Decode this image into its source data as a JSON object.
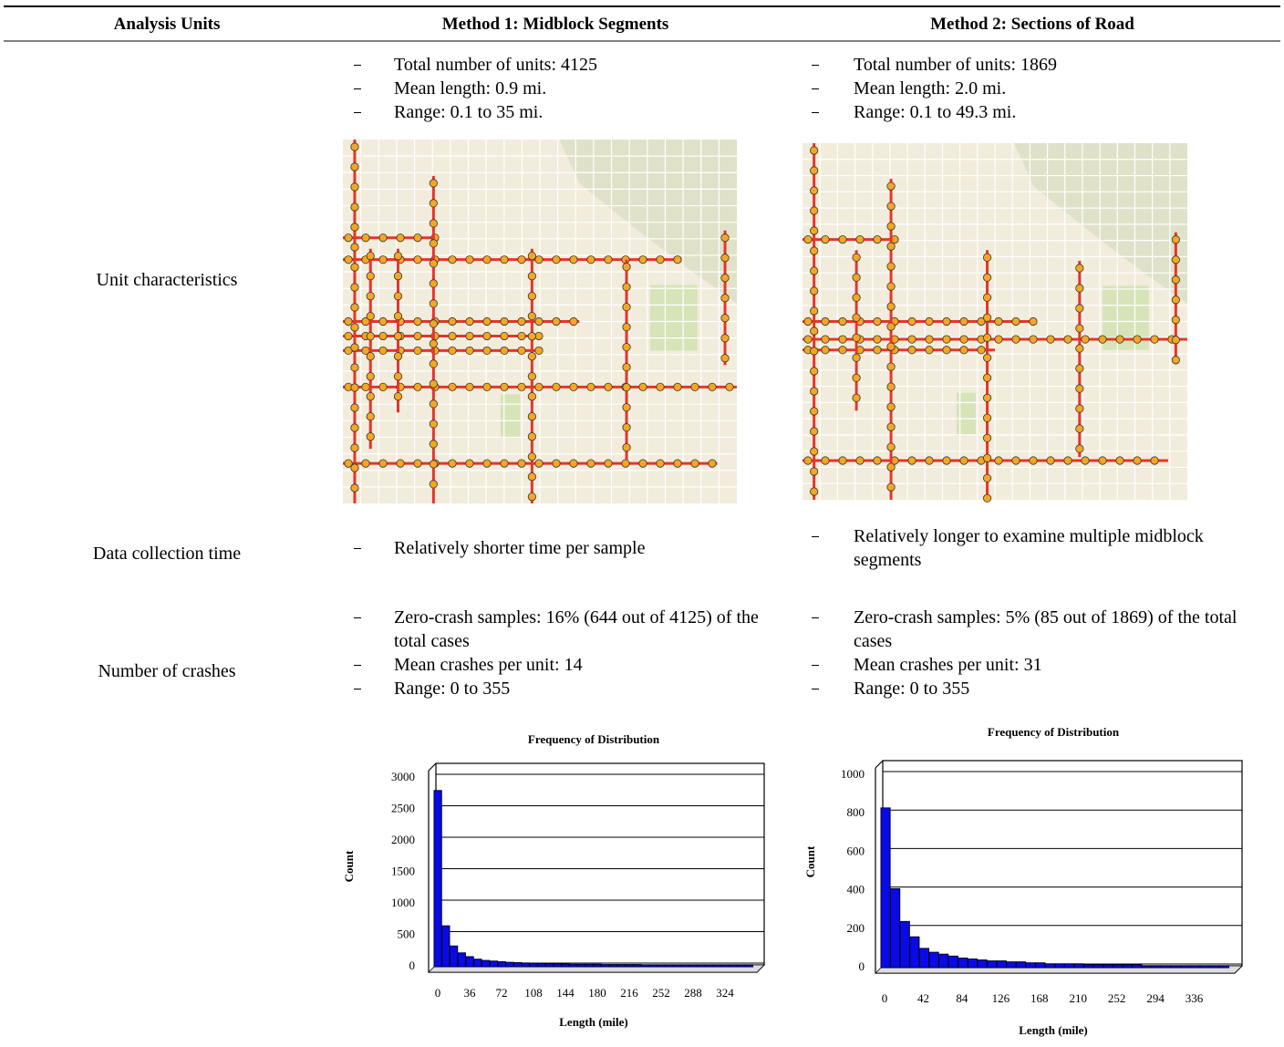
{
  "table": {
    "headers": [
      "Analysis Units",
      "Method 1: Midblock Segments",
      "Method 2: Sections of Road"
    ],
    "rows": [
      {
        "label": "Unit characteristics",
        "method1": [
          "Total number of units: 4125",
          "Mean length: 0.9 mi.",
          "Range: 0.1 to 35 mi."
        ],
        "method2": [
          "Total number of units: 1869",
          "Mean length: 2.0 mi.",
          "Range: 0.1 to 49.3 mi."
        ]
      },
      {
        "label": "Data collection time",
        "method1": [
          "Relatively shorter time per sample"
        ],
        "method2": [
          "Relatively longer to examine multiple midblock segments"
        ]
      },
      {
        "label": "Number of crashes",
        "method1": [
          "Zero-crash samples: 16% (644 out of 4125) of the total cases",
          "Mean crashes per unit: 14",
          "Range: 0 to 355"
        ],
        "method2": [
          "Zero-crash samples: 5% (85 out of 1869) of the total cases",
          "Mean crashes per unit: 31",
          "Range: 0 to 355"
        ]
      }
    ]
  },
  "charts": [
    {
      "type": "histogram",
      "title": "Frequency of Distribution",
      "xlabel": "Length (mile)",
      "ylabel": "Count",
      "color": "#0a0ae6",
      "bins": [
        0,
        9,
        18,
        27,
        36,
        45,
        54,
        63,
        72,
        81,
        90,
        99,
        108,
        117,
        126,
        135,
        144,
        153,
        162,
        171,
        180,
        189,
        198,
        207,
        216,
        225,
        234,
        243,
        252,
        261,
        270,
        279,
        288,
        297,
        306,
        315,
        324,
        333,
        342,
        351,
        360
      ],
      "counts": [
        2800,
        650,
        330,
        220,
        160,
        120,
        100,
        90,
        80,
        70,
        65,
        60,
        55,
        50,
        50,
        45,
        45,
        40,
        40,
        40,
        40,
        35,
        35,
        35,
        35,
        35,
        30,
        30,
        30,
        30,
        30,
        30,
        30,
        30,
        30,
        30,
        30,
        30,
        30,
        30
      ],
      "xlim": [
        0,
        360
      ],
      "ylim": [
        0,
        3000
      ],
      "xticks": [
        0,
        36,
        72,
        108,
        144,
        180,
        216,
        252,
        288,
        324
      ],
      "yticks": [
        0,
        500,
        1000,
        1500,
        2000,
        2500,
        3000
      ]
    },
    {
      "type": "histogram",
      "title": "Frequency of Distribution",
      "xlabel": "Length (mile)",
      "ylabel": "Count",
      "color": "#0a0ae6",
      "bins": [
        0,
        10.5,
        21,
        31.5,
        42,
        52.5,
        63,
        73.5,
        84,
        94.5,
        105,
        115.5,
        126,
        136.5,
        147,
        157.5,
        168,
        178.5,
        189,
        199.5,
        210,
        220.5,
        231,
        241.5,
        252,
        262.5,
        273,
        283.5,
        294,
        304.5,
        315,
        325.5,
        336,
        346.5,
        357,
        367.5,
        378
      ],
      "counts": [
        830,
        410,
        240,
        160,
        100,
        80,
        70,
        60,
        50,
        45,
        40,
        35,
        35,
        30,
        30,
        25,
        25,
        20,
        20,
        20,
        20,
        15,
        15,
        15,
        15,
        15,
        15,
        10,
        10,
        10,
        10,
        10,
        10,
        10,
        10,
        10
      ],
      "xlim": [
        0,
        380
      ],
      "ylim": [
        0,
        1000
      ],
      "xticks": [
        0,
        42,
        84,
        126,
        168,
        210,
        252,
        294,
        336
      ],
      "yticks": [
        0,
        200,
        400,
        600,
        800,
        1000
      ]
    }
  ]
}
